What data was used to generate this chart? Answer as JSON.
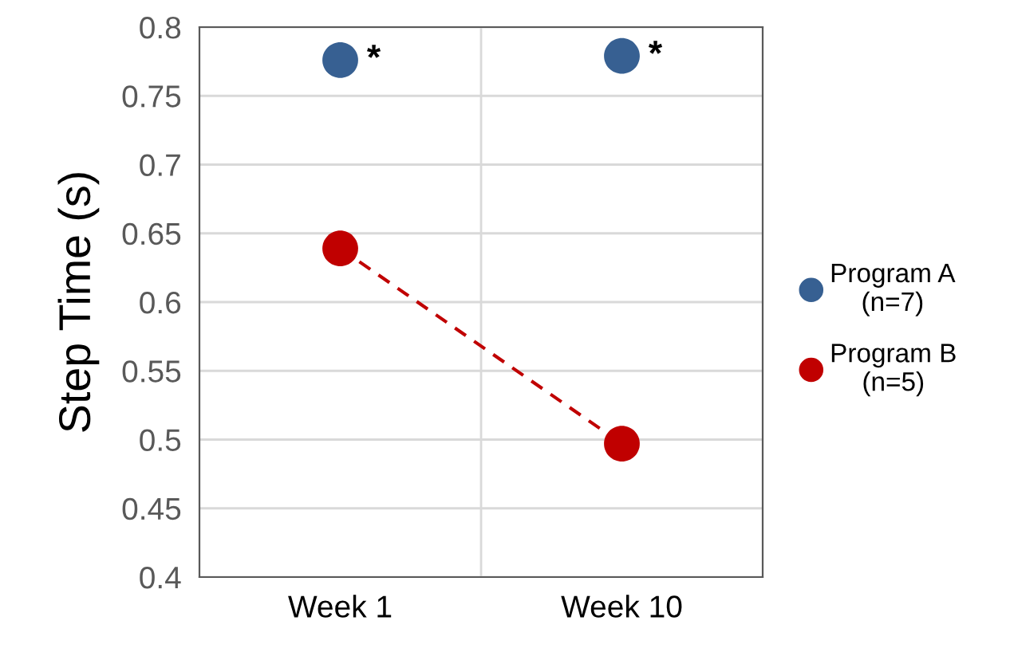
{
  "chart_data": {
    "type": "scatter",
    "ylabel": "Step Time (s)",
    "categories": [
      "Week 1",
      "Week 10"
    ],
    "series": [
      {
        "name": "Program A\n(n=7)",
        "color": "#376092",
        "values": [
          0.776,
          0.779
        ]
      },
      {
        "name": "Program B\n(n=5)",
        "color": "#c00000",
        "values": [
          0.639,
          0.497
        ],
        "type": "line",
        "line_style": "dashed"
      }
    ],
    "annotations": [
      {
        "text": "*",
        "x": "Week 1",
        "y": 0.776
      },
      {
        "text": "*",
        "x": "Week 10",
        "y": 0.779
      }
    ],
    "ylim": [
      0.4,
      0.8
    ],
    "yticks": [
      0.4,
      0.45,
      0.5,
      0.55,
      0.6,
      0.65,
      0.7,
      0.75,
      0.8
    ],
    "grid": true,
    "legend": "right",
    "marker": "circle"
  }
}
